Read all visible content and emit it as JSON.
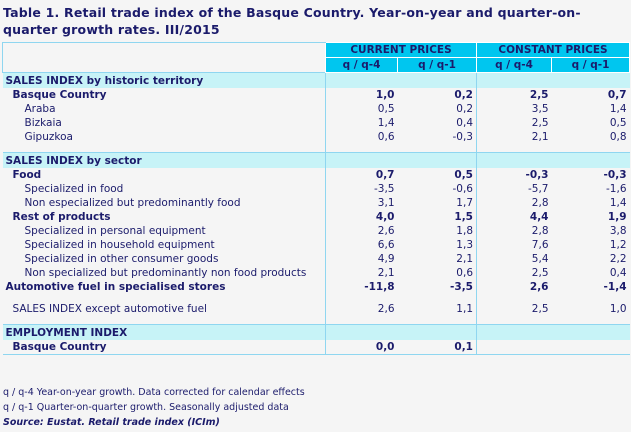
{
  "title": "Table 1. Retail trade index of the Basque Country. Year-on-year and quarter-on-quarter growth rates. III/2015",
  "headers": {
    "current": "CURRENT PRICES",
    "constant": "CONSTANT PRICES",
    "sub": [
      "q / q-4",
      "q / q-1",
      "q / q-4",
      "q / q-1"
    ]
  },
  "sections": [
    {
      "title": "SALES INDEX by historic territory",
      "rows": [
        {
          "label": "Basque Country",
          "level": 1,
          "bold": true,
          "values": [
            "1,0",
            "0,2",
            "2,5",
            "0,7"
          ]
        },
        {
          "label": "Araba",
          "level": 2,
          "values": [
            "0,5",
            "0,2",
            "3,5",
            "1,4"
          ]
        },
        {
          "label": "Bizkaia",
          "level": 2,
          "values": [
            "1,4",
            "0,4",
            "2,5",
            "0,5"
          ]
        },
        {
          "label": "Gipuzkoa",
          "level": 2,
          "values": [
            "0,6",
            "-0,3",
            "2,1",
            "0,8"
          ]
        }
      ]
    },
    {
      "title": "SALES INDEX by sector",
      "rows": [
        {
          "label": "Food",
          "level": 1,
          "bold": true,
          "values": [
            "0,7",
            "0,5",
            "-0,3",
            "-0,3"
          ]
        },
        {
          "label": "Specialized in food",
          "level": 2,
          "values": [
            "-3,5",
            "-0,6",
            "-5,7",
            "-1,6"
          ]
        },
        {
          "label": "Non especialized but predominantly food",
          "level": 2,
          "values": [
            "3,1",
            "1,7",
            "2,8",
            "1,4"
          ]
        },
        {
          "label": "Rest of products",
          "level": 1,
          "bold": true,
          "values": [
            "4,0",
            "1,5",
            "4,4",
            "1,9"
          ]
        },
        {
          "label": "Specialized in personal equipment",
          "level": 2,
          "values": [
            "2,6",
            "1,8",
            "2,8",
            "3,8"
          ]
        },
        {
          "label": "Specialized in household equipment",
          "level": 2,
          "values": [
            "6,6",
            "1,3",
            "7,6",
            "1,2"
          ]
        },
        {
          "label": "Specialized in other consumer goods",
          "level": 2,
          "values": [
            "4,9",
            "2,1",
            "5,4",
            "2,2"
          ]
        },
        {
          "label": "Non specialized but predominantly non food products",
          "level": 2,
          "values": [
            "2,1",
            "0,6",
            "2,5",
            "0,4"
          ]
        },
        {
          "label": "Automotive fuel in specialised stores",
          "level": 0,
          "bold": true,
          "values": [
            "-11,8",
            "-3,5",
            "2,6",
            "-1,4"
          ]
        },
        {
          "spacer": true
        },
        {
          "label": "SALES INDEX except automotive fuel",
          "level": 1,
          "values": [
            "2,6",
            "1,1",
            "2,5",
            "1,0"
          ]
        },
        {
          "spacer": true
        }
      ]
    },
    {
      "title": "EMPLOYMENT INDEX",
      "rows": [
        {
          "label": "Basque Country",
          "level": 1,
          "bold": true,
          "values": [
            "0,0",
            "0,1",
            "",
            ""
          ]
        }
      ]
    }
  ],
  "notes": [
    "q / q-4 Year-on-year growth. Data corrected for calendar effects",
    "q / q-1 Quarter-on-quarter growth. Seasonally adjusted data"
  ],
  "source": "Source: Eustat. Retail trade index (ICIm)"
}
